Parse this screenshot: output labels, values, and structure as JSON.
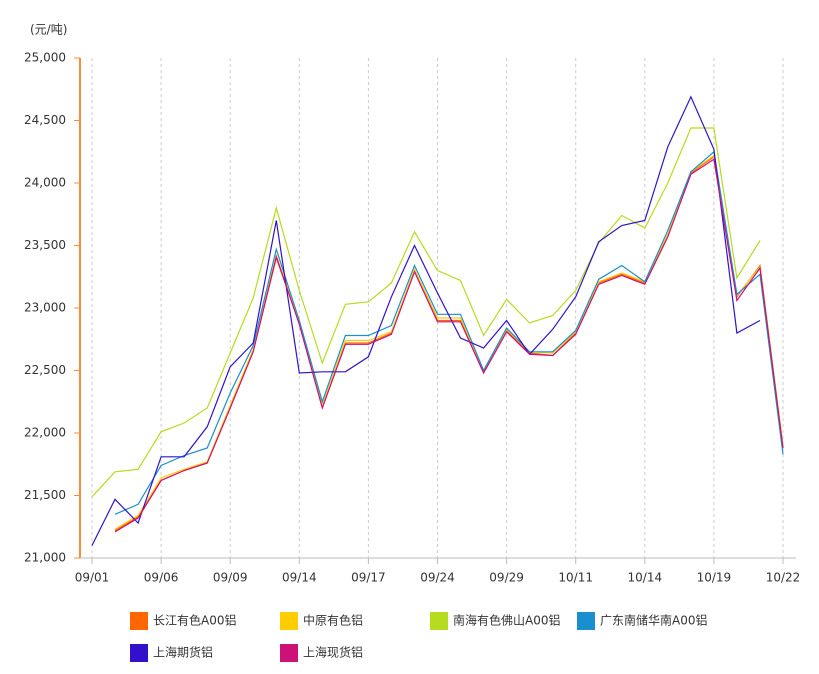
{
  "chart_data": {
    "type": "line",
    "y_label": "(元/吨)",
    "categories": [
      "09/01",
      null,
      null,
      "09/06",
      null,
      null,
      "09/09",
      null,
      null,
      "09/14",
      null,
      null,
      "09/17",
      null,
      null,
      "09/24",
      null,
      null,
      "09/29",
      null,
      null,
      "10/11",
      null,
      null,
      "10/14",
      null,
      null,
      "10/19",
      null,
      null,
      "10/22"
    ],
    "ylim": [
      21000,
      25000
    ],
    "yticks": [
      {
        "value": 21000,
        "label": "21,000"
      },
      {
        "value": 21500,
        "label": "21,500"
      },
      {
        "value": 22000,
        "label": "22,000"
      },
      {
        "value": 22500,
        "label": "22,500"
      },
      {
        "value": 23000,
        "label": "23,000"
      },
      {
        "value": 23500,
        "label": "23,500"
      },
      {
        "value": 24000,
        "label": "24,000"
      },
      {
        "value": 24500,
        "label": "24,500"
      },
      {
        "value": 25000,
        "label": "25,000"
      }
    ],
    "grid": true,
    "series": [
      {
        "name": "长江有色A00铝",
        "color": "#ff6600",
        "values": [
          null,
          21220,
          21330,
          21620,
          21700,
          21760,
          22210,
          22660,
          23400,
          22880,
          22210,
          22720,
          22720,
          22800,
          23300,
          22900,
          22900,
          22490,
          22820,
          22640,
          22620,
          22800,
          23200,
          23270,
          23200,
          23580,
          24080,
          24210,
          23090,
          23340,
          21890
        ]
      },
      {
        "name": "中原有色铝",
        "color": "#ffcc00",
        "values": [
          null,
          21230,
          21340,
          21640,
          21710,
          21770,
          22220,
          22670,
          23420,
          22890,
          22220,
          22740,
          22740,
          22810,
          23310,
          22920,
          22920,
          22500,
          22830,
          22650,
          22640,
          22810,
          23210,
          23280,
          23210,
          23590,
          24090,
          24220,
          23100,
          23330,
          21900
        ]
      },
      {
        "name": "南海有色佛山A00铝",
        "color": "#b5dc1e",
        "values": [
          21490,
          21690,
          21710,
          22010,
          22080,
          22200,
          22640,
          23080,
          23800,
          23140,
          22560,
          23030,
          23050,
          23200,
          23610,
          23300,
          23220,
          22780,
          23070,
          22880,
          22940,
          23140,
          23520,
          23740,
          23640,
          24000,
          24440,
          24440,
          23240,
          23540,
          null
        ]
      },
      {
        "name": "广东南储华南A00铝",
        "color": "#1a8fd0",
        "values": [
          null,
          21350,
          21430,
          21740,
          21820,
          21880,
          22320,
          22700,
          23470,
          22900,
          22250,
          22780,
          22780,
          22860,
          23340,
          22950,
          22950,
          22500,
          22840,
          22650,
          22650,
          22820,
          23230,
          23340,
          23210,
          23620,
          24090,
          24250,
          23110,
          23270,
          21830
        ]
      },
      {
        "name": "上海期货铝",
        "color": "#3311cc",
        "values": [
          21100,
          21470,
          21280,
          21810,
          21810,
          22050,
          22530,
          22720,
          23700,
          22480,
          22490,
          22490,
          22610,
          23090,
          23500,
          23120,
          22760,
          22680,
          22900,
          22630,
          22830,
          23090,
          23530,
          23660,
          23700,
          24290,
          24690,
          24270,
          22800,
          22900,
          null
        ]
      },
      {
        "name": "上海现货铝",
        "color": "#cc1177",
        "values": [
          null,
          21210,
          21320,
          21620,
          21700,
          21760,
          22200,
          22650,
          23410,
          22870,
          22200,
          22710,
          22710,
          22790,
          23290,
          22890,
          22890,
          22480,
          22810,
          22630,
          22620,
          22790,
          23190,
          23260,
          23190,
          23570,
          24070,
          24190,
          23060,
          23320,
          21880
        ]
      }
    ]
  }
}
